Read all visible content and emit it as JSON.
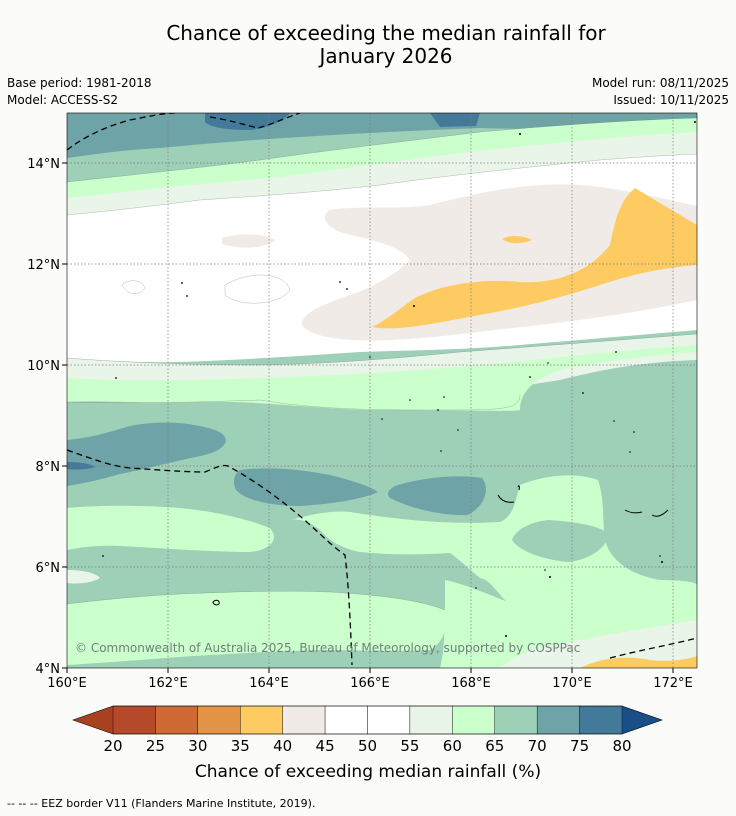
{
  "title_line1": "Chance of exceeding the median rainfall for",
  "title_line2": "January 2026",
  "base_period": "Base period: 1981-2018",
  "model": "Model: ACCESS-S2",
  "model_run": "Model run: 08/11/2025",
  "issued": "Issued: 10/11/2025",
  "copyright": "© Commonwealth of Australia 2025, Bureau of Meteorology, supported by COSPPac",
  "legend_footer": "--  --  -- EEZ border V11 (Flanders Marine Institute, 2019).",
  "colorbar": {
    "title": "Chance of exceeding median rainfall (%)",
    "ticks": [
      "20",
      "25",
      "30",
      "35",
      "40",
      "45",
      "50",
      "55",
      "60",
      "65",
      "70",
      "75",
      "80"
    ],
    "colors": [
      "#a8411f",
      "#b5492a",
      "#d06a35",
      "#e39446",
      "#fecb62",
      "#f0ebe6",
      "#ffffff",
      "#ffffff",
      "#e9f5e8",
      "#cbffcc",
      "#9ecfb7",
      "#6ea4a7",
      "#447a99",
      "#1a4e86"
    ]
  },
  "map_data": {
    "lon_ticks": [
      "160°E",
      "162°E",
      "164°E",
      "166°E",
      "168°E",
      "170°E",
      "172°E"
    ],
    "lat_ticks": [
      "14°N",
      "12°N",
      "10°N",
      "8°N",
      "6°N",
      "4°N"
    ],
    "lon_range": [
      160,
      172.5
    ],
    "lat_range": [
      4,
      15.1
    ]
  }
}
